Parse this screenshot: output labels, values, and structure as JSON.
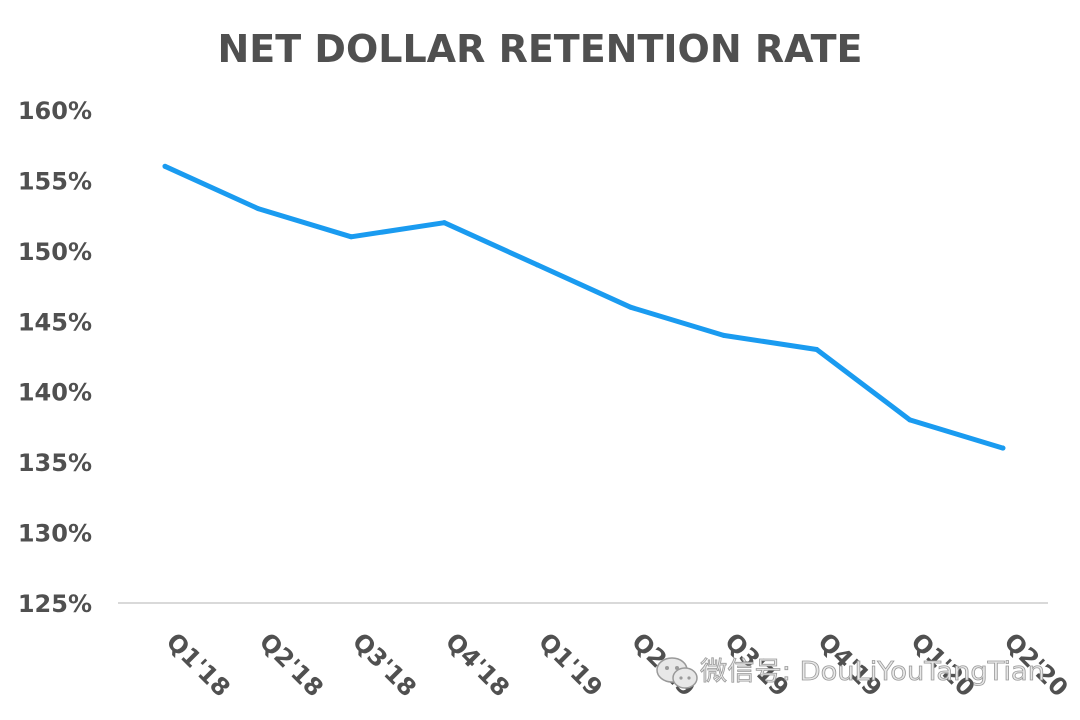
{
  "chart_data": {
    "type": "line",
    "title": "NET DOLLAR RETENTION RATE",
    "categories": [
      "Q1'18",
      "Q2'18",
      "Q3'18",
      "Q4'18",
      "Q1'19",
      "Q2'19",
      "Q3'19",
      "Q4'19",
      "Q1'20",
      "Q2'20"
    ],
    "series": [
      {
        "values": [
          156,
          153,
          151,
          152,
          149,
          146,
          144,
          143,
          138,
          136
        ]
      }
    ],
    "ylim": [
      125,
      160
    ],
    "yticks": [
      "160%",
      "155%",
      "150%",
      "145%",
      "140%",
      "135%",
      "130%",
      "125%"
    ],
    "ytick_values": [
      160,
      155,
      150,
      145,
      140,
      135,
      130,
      125
    ],
    "line_color": "#1a9bf0",
    "axis_color": "#d9d9d9",
    "text_color": "#505050",
    "grid": false,
    "legend": false
  },
  "watermark": {
    "text": "微信号: DouLiYouTangTian",
    "icon": "wechat-icon"
  }
}
